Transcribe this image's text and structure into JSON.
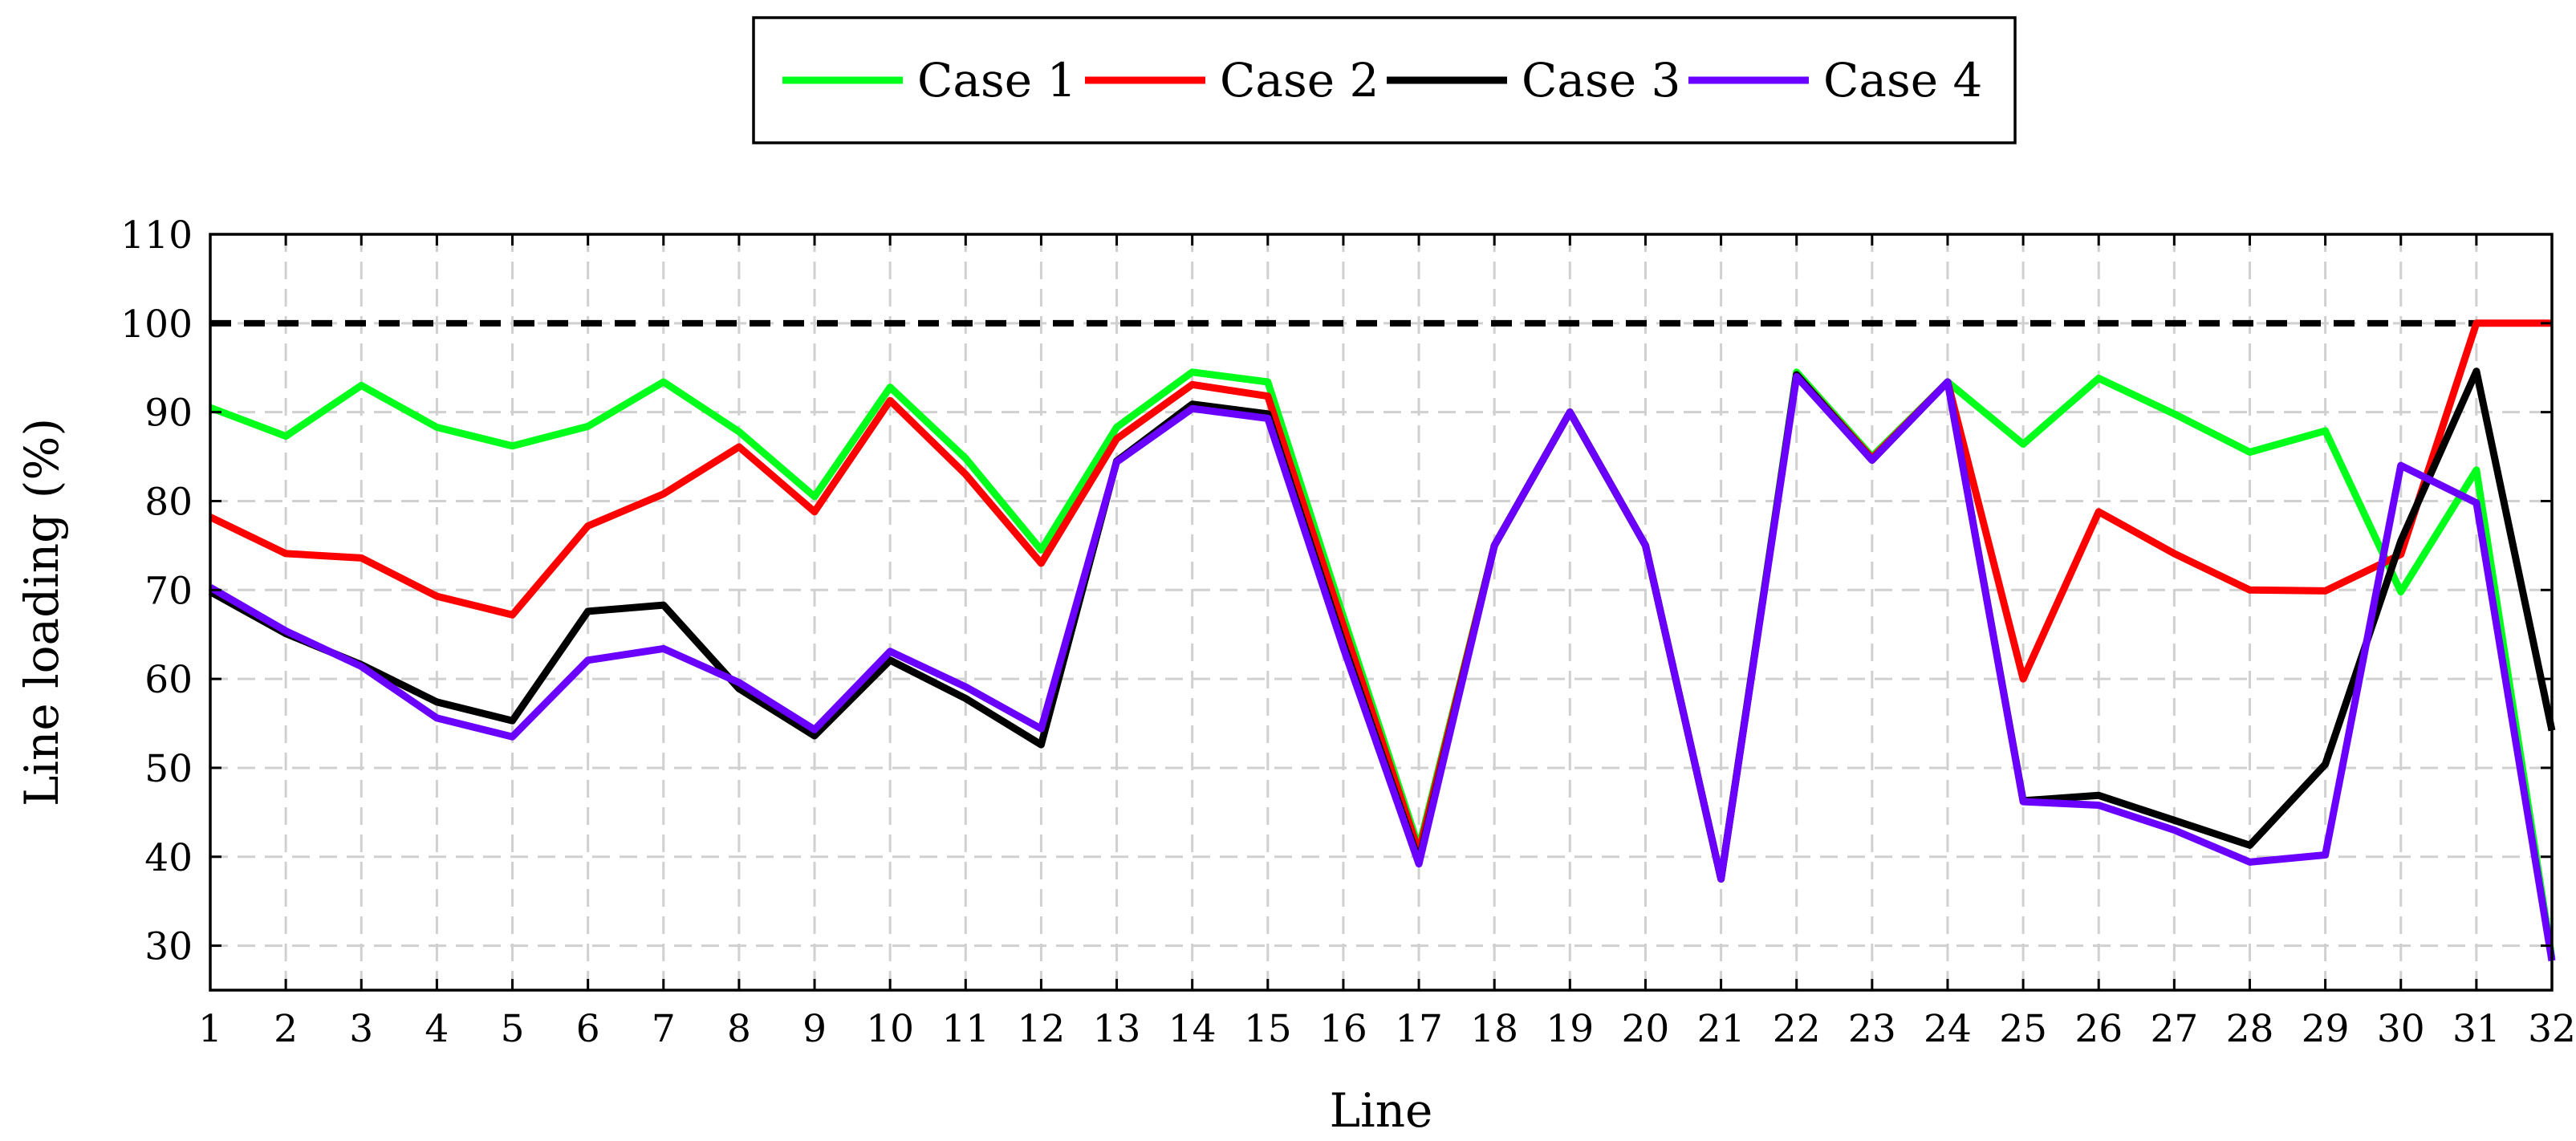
{
  "chart_data": {
    "type": "line",
    "title": "",
    "xlabel": "Line",
    "ylabel": "Line loading (%)",
    "x": [
      1,
      2,
      3,
      4,
      5,
      6,
      7,
      8,
      9,
      10,
      11,
      12,
      13,
      14,
      15,
      16,
      17,
      18,
      19,
      20,
      21,
      22,
      23,
      24,
      25,
      26,
      27,
      28,
      29,
      30,
      31,
      32
    ],
    "xlim": [
      1,
      32
    ],
    "ylim": [
      25,
      110
    ],
    "yticks": [
      30,
      40,
      50,
      60,
      70,
      80,
      90,
      100,
      110
    ],
    "grid": true,
    "legend_position": "top-center",
    "reference_line": {
      "y": 100,
      "style": "dashed",
      "color": "#000000"
    },
    "series": [
      {
        "name": "Case 1",
        "color": "#00ff1a",
        "values": [
          90.5,
          87.3,
          93.0,
          88.3,
          86.2,
          88.4,
          93.4,
          87.8,
          80.5,
          92.8,
          84.8,
          74.5,
          88.3,
          94.5,
          93.4,
          67.0,
          41.0,
          75.0,
          90.0,
          75.0,
          37.5,
          94.5,
          85.0,
          93.4,
          86.4,
          93.8,
          89.8,
          85.5,
          87.9,
          69.8,
          83.5,
          28.5
        ]
      },
      {
        "name": "Case 2",
        "color": "#ff0000",
        "values": [
          78.2,
          74.1,
          73.6,
          69.3,
          67.2,
          77.2,
          80.8,
          86.1,
          78.8,
          91.3,
          83.0,
          73.0,
          87.0,
          93.1,
          91.8,
          66.0,
          40.5,
          75.0,
          90.0,
          75.0,
          37.5,
          94.2,
          84.8,
          93.4,
          60.0,
          78.8,
          74.1,
          70.0,
          69.9,
          74.0,
          100.0,
          100.0
        ]
      },
      {
        "name": "Case 3",
        "color": "#000000",
        "values": [
          69.8,
          65.1,
          61.6,
          57.4,
          55.3,
          67.6,
          68.3,
          58.9,
          53.6,
          62.1,
          57.8,
          52.6,
          84.5,
          90.9,
          89.8,
          64.0,
          39.5,
          75.0,
          90.0,
          75.0,
          37.5,
          94.2,
          84.6,
          93.4,
          46.3,
          46.9,
          44.1,
          41.3,
          50.4,
          75.5,
          94.6,
          54.2
        ]
      },
      {
        "name": "Case 4",
        "color": "#6a00ff",
        "values": [
          70.3,
          65.4,
          61.4,
          55.6,
          53.5,
          62.1,
          63.4,
          59.6,
          54.3,
          63.1,
          59.1,
          54.4,
          84.4,
          90.4,
          89.3,
          63.5,
          39.2,
          75.0,
          90.0,
          75.0,
          37.5,
          94.0,
          84.6,
          93.4,
          46.2,
          45.8,
          43.0,
          39.4,
          40.2,
          84.0,
          79.8,
          28.3
        ]
      }
    ]
  }
}
